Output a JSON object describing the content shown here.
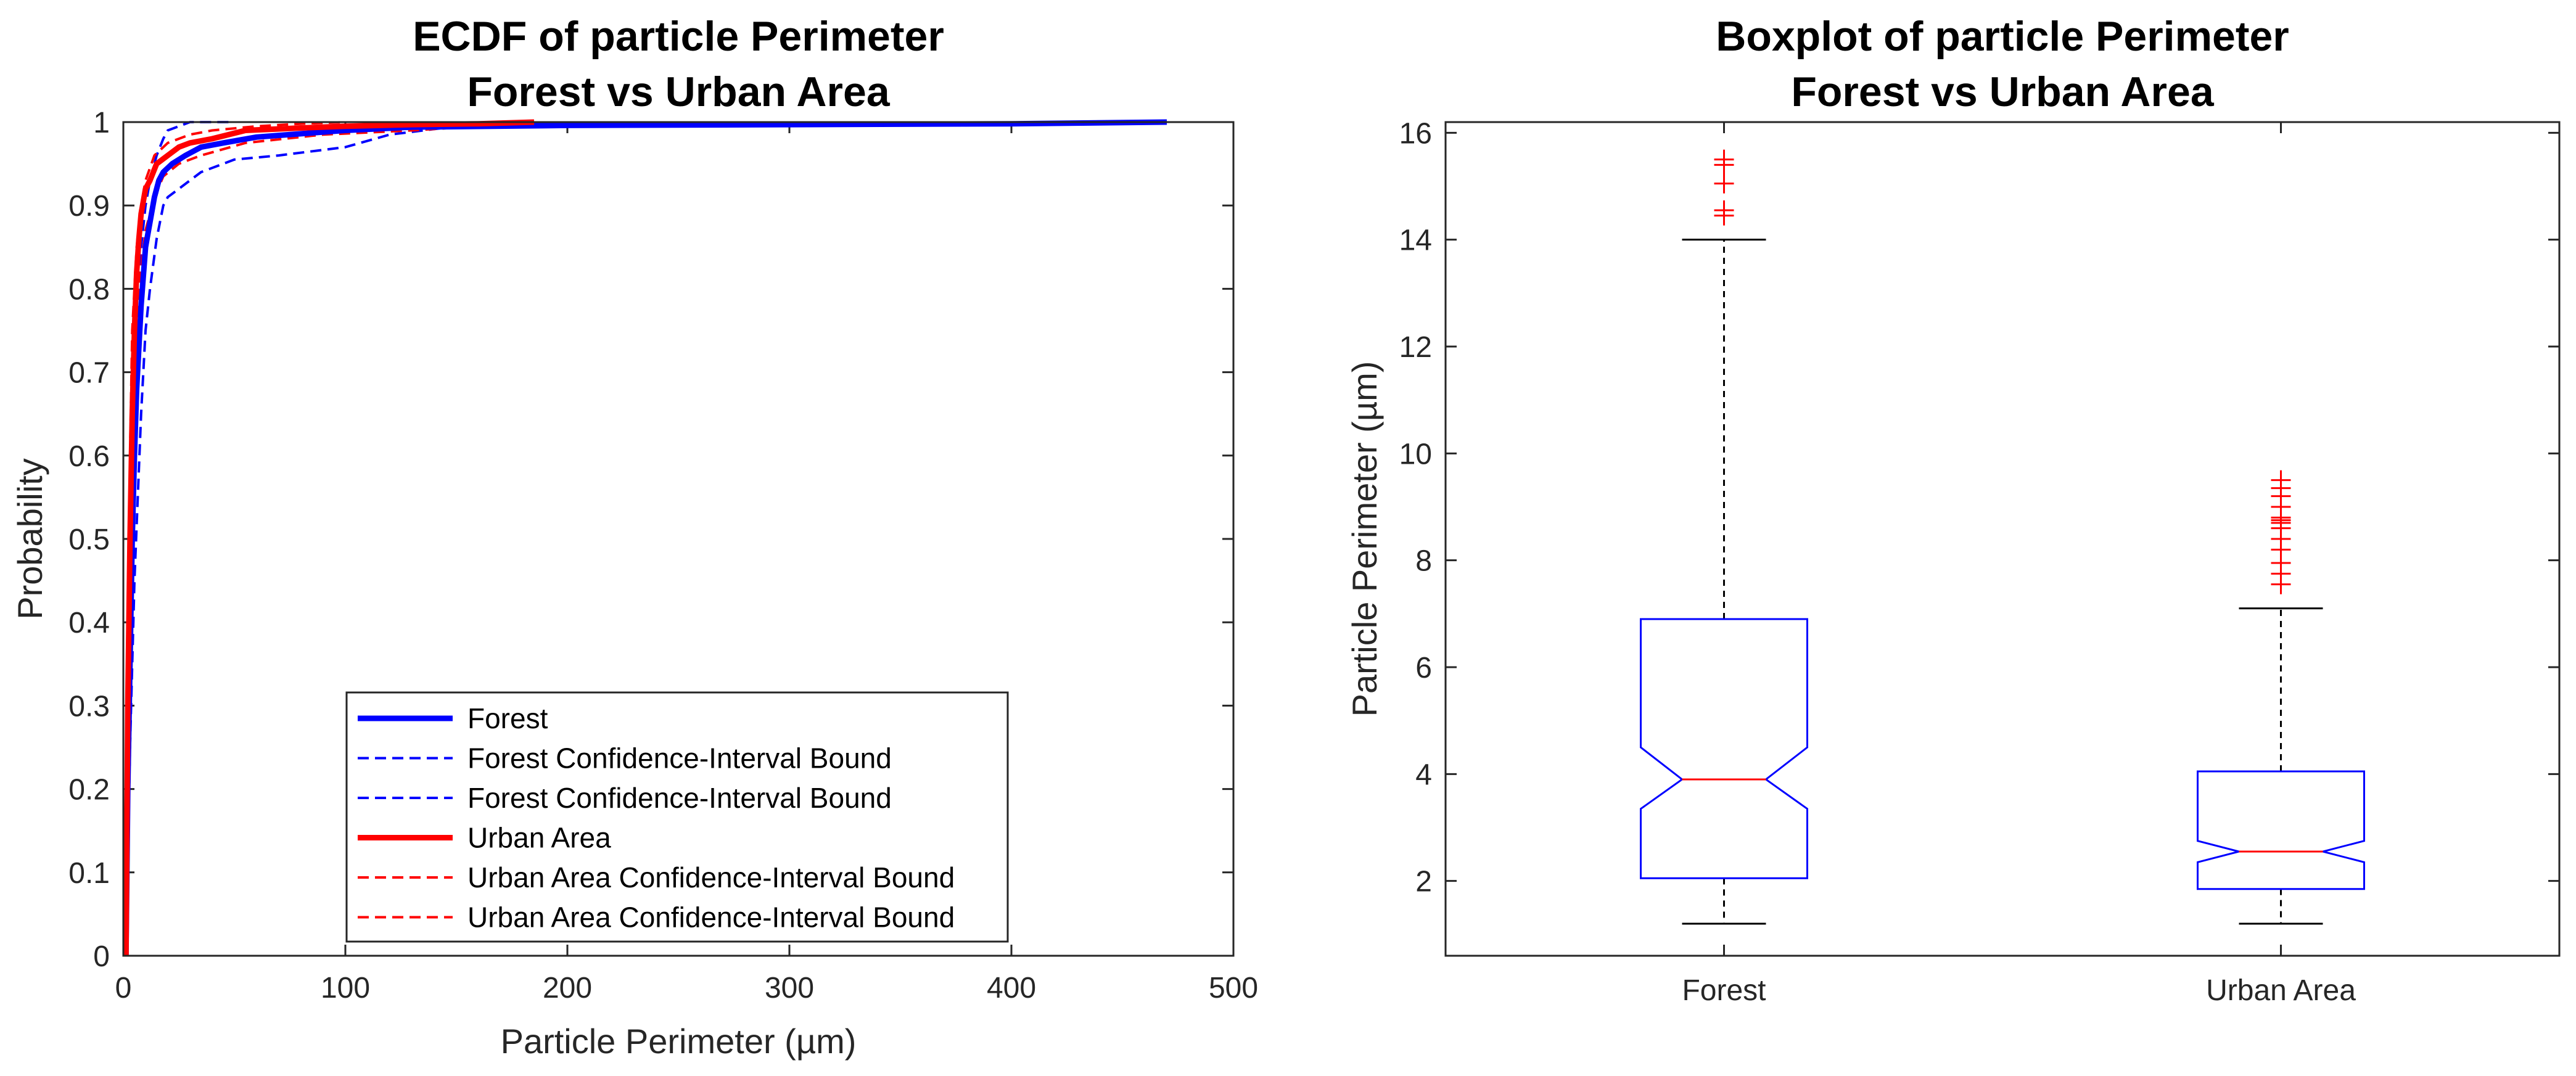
{
  "colors": {
    "forest": "#0000ff",
    "urban": "#ff0000",
    "axis": "#262626",
    "whisker": "#000000",
    "median": "#ff0000"
  },
  "chart_data": [
    {
      "type": "line",
      "title_lines": [
        "ECDF of particle Perimeter",
        "Forest vs Urban Area"
      ],
      "xlabel": "Particle Perimeter (µm)",
      "ylabel": "Probability",
      "xlim": [
        0,
        500
      ],
      "ylim": [
        0,
        1
      ],
      "xticks": [
        0,
        100,
        200,
        300,
        400,
        500
      ],
      "yticks": [
        0,
        0.1,
        0.2,
        0.3,
        0.4,
        0.5,
        0.6,
        0.7,
        0.8,
        0.9,
        1
      ],
      "grid": false,
      "legend_position": "bottom-center",
      "series": [
        {
          "name": "Forest",
          "color": "#0000ff",
          "style": "solid",
          "x": [
            1.2,
            2,
            3,
            4,
            5,
            6,
            8,
            10,
            12,
            14,
            16,
            18,
            22,
            28,
            35,
            45,
            60,
            80,
            100,
            130,
            200,
            300,
            400,
            470
          ],
          "y": [
            0,
            0.2,
            0.35,
            0.5,
            0.6,
            0.68,
            0.78,
            0.85,
            0.88,
            0.91,
            0.93,
            0.94,
            0.95,
            0.96,
            0.97,
            0.975,
            0.982,
            0.986,
            0.99,
            0.994,
            0.996,
            0.997,
            0.998,
            1.0
          ]
        },
        {
          "name": "Forest Confidence-Interval Bound",
          "color": "#0000ff",
          "style": "dashed",
          "x": [
            1.2,
            3,
            5,
            8,
            10,
            12,
            15,
            18,
            20,
            25,
            35,
            50,
            70,
            100,
            120,
            150,
            470
          ],
          "y": [
            0,
            0.25,
            0.45,
            0.65,
            0.75,
            0.8,
            0.86,
            0.9,
            0.91,
            0.92,
            0.94,
            0.955,
            0.96,
            0.97,
            0.985,
            0.995,
            1.0
          ]
        },
        {
          "name": "Forest Confidence-Interval Bound",
          "color": "#0000ff",
          "style": "dashed",
          "x": [
            1.2,
            2,
            3,
            5,
            8,
            10,
            12,
            15,
            18,
            20,
            25,
            30,
            40,
            50
          ],
          "y": [
            0,
            0.3,
            0.45,
            0.7,
            0.85,
            0.9,
            0.93,
            0.96,
            0.98,
            0.99,
            0.995,
            1.0,
            1.0,
            1.0
          ]
        },
        {
          "name": "Urban Area",
          "color": "#ff0000",
          "style": "solid",
          "x": [
            1.2,
            2,
            3,
            4,
            5,
            6,
            7,
            8,
            10,
            12,
            15,
            20,
            25,
            30,
            40,
            55,
            80,
            100,
            130,
            160,
            185
          ],
          "y": [
            0,
            0.3,
            0.5,
            0.65,
            0.75,
            0.82,
            0.86,
            0.89,
            0.92,
            0.93,
            0.95,
            0.96,
            0.97,
            0.975,
            0.98,
            0.99,
            0.993,
            0.995,
            0.997,
            0.998,
            1.0
          ]
        },
        {
          "name": "Urban Area Confidence-Interval Bound",
          "color": "#ff0000",
          "style": "dashed",
          "x": [
            1.2,
            2,
            3,
            5,
            7,
            10,
            14,
            18,
            25,
            35,
            55,
            90,
            130,
            160,
            185
          ],
          "y": [
            0,
            0.25,
            0.45,
            0.68,
            0.8,
            0.87,
            0.91,
            0.935,
            0.95,
            0.96,
            0.975,
            0.985,
            0.99,
            0.995,
            1.0
          ]
        },
        {
          "name": "Urban Area Confidence-Interval Bound",
          "color": "#ff0000",
          "style": "dashed",
          "x": [
            1.2,
            2,
            3,
            4,
            6,
            8,
            10,
            14,
            20,
            30,
            40,
            60,
            80,
            100
          ],
          "y": [
            0,
            0.35,
            0.6,
            0.75,
            0.85,
            0.9,
            0.93,
            0.96,
            0.975,
            0.985,
            0.99,
            0.995,
            0.998,
            1.0
          ]
        }
      ]
    },
    {
      "type": "boxplot",
      "title_lines": [
        "Boxplot of particle Perimeter",
        "Forest vs Urban Area"
      ],
      "ylabel": "Particle Perimeter (µm)",
      "ylim": [
        0.6,
        16.2
      ],
      "yticks": [
        2,
        4,
        6,
        8,
        10,
        12,
        14,
        16
      ],
      "categories": [
        "Forest",
        "Urban Area"
      ],
      "boxes": [
        {
          "category": "Forest",
          "q1": 2.05,
          "median": 3.9,
          "q3": 6.9,
          "notch_low": 3.35,
          "notch_high": 4.5,
          "whisker_low": 1.2,
          "whisker_high": 14.0,
          "outliers": [
            14.45,
            14.55,
            15.05,
            15.4,
            15.5
          ]
        },
        {
          "category": "Urban Area",
          "q1": 1.85,
          "median": 2.55,
          "q3": 4.05,
          "notch_low": 2.35,
          "notch_high": 2.75,
          "whisker_low": 1.2,
          "whisker_high": 7.1,
          "outliers": [
            7.55,
            7.75,
            7.95,
            8.2,
            8.4,
            8.6,
            8.7,
            8.75,
            8.8,
            9.0,
            9.2,
            9.35,
            9.5
          ]
        }
      ]
    }
  ]
}
